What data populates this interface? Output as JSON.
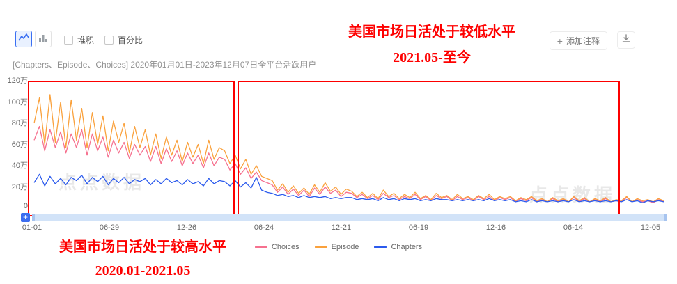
{
  "toolbar": {
    "stacked_label": "堆积",
    "percent_label": "百分比",
    "add_note_label": "添加注释",
    "chart_type_selected": "line"
  },
  "header": {
    "subtitle": "[Chapters、Episode、Choices]  2020年01月01日-2023年12月07日全平台活跃用户"
  },
  "annotations": {
    "top_line1": "美国市场日活处于较低水平",
    "top_line2": "2021.05-至今",
    "bottom_line1": "美国市场日活处于较高水平",
    "bottom_line2": "2020.01-2021.05"
  },
  "watermark": "点点数据",
  "chart_data": {
    "type": "line",
    "title": "[Chapters、Episode、Choices] 2020年01月01日-2023年12月07日全平台活跃用户",
    "y_unit": "万",
    "y_max": 120,
    "ylim": [
      0,
      120
    ],
    "y_tick_labels": [
      "120万",
      "100万",
      "80万",
      "60万",
      "40万",
      "20万",
      "0"
    ],
    "x_tick_labels": [
      "01-01",
      "06-29",
      "12-26",
      "06-24",
      "12-21",
      "06-19",
      "12-16",
      "06-14",
      "12-05"
    ],
    "legend_position": "bottom",
    "grid": false,
    "series": [
      {
        "name": "Choices",
        "color": "#f6718f",
        "values": [
          62,
          75,
          52,
          72,
          55,
          70,
          50,
          68,
          55,
          72,
          48,
          68,
          52,
          65,
          46,
          62,
          50,
          60,
          45,
          58,
          48,
          56,
          42,
          56,
          40,
          54,
          42,
          52,
          38,
          50,
          40,
          48,
          36,
          50,
          38,
          46,
          44,
          34,
          40,
          30,
          36,
          26,
          32,
          24,
          22,
          20,
          13,
          18,
          11,
          16,
          10,
          15,
          9,
          17,
          11,
          18,
          12,
          15,
          9,
          13,
          12,
          8,
          11,
          7,
          10,
          6,
          12,
          8,
          10,
          6,
          9,
          7,
          11,
          6,
          9,
          5,
          10,
          7,
          9,
          5,
          9,
          6,
          8,
          5,
          9,
          6,
          9,
          5,
          8,
          6,
          8,
          4,
          7,
          5,
          8,
          4,
          6,
          4,
          7,
          4,
          6,
          4,
          8,
          4,
          7,
          4,
          6,
          4,
          7,
          4,
          5,
          4,
          8,
          4,
          6,
          4,
          5,
          3,
          6,
          4
        ]
      },
      {
        "name": "Episode",
        "color": "#faa13c",
        "values": [
          78,
          102,
          58,
          105,
          60,
          98,
          55,
          100,
          62,
          92,
          55,
          88,
          58,
          85,
          52,
          80,
          60,
          78,
          50,
          75,
          55,
          72,
          48,
          68,
          45,
          65,
          48,
          62,
          42,
          60,
          46,
          58,
          40,
          62,
          44,
          55,
          52,
          40,
          48,
          35,
          44,
          30,
          38,
          28,
          26,
          24,
          15,
          21,
          13,
          19,
          12,
          17,
          11,
          20,
          13,
          22,
          14,
          18,
          11,
          16,
          14,
          9,
          13,
          8,
          12,
          7,
          15,
          9,
          12,
          7,
          11,
          8,
          13,
          7,
          10,
          6,
          12,
          8,
          10,
          6,
          11,
          7,
          9,
          6,
          10,
          7,
          11,
          6,
          9,
          7,
          9,
          5,
          8,
          6,
          9,
          5,
          7,
          4,
          8,
          5,
          7,
          4,
          9,
          5,
          8,
          4,
          7,
          5,
          8,
          4,
          6,
          5,
          9,
          4,
          7,
          5,
          6,
          4,
          7,
          5
        ]
      },
      {
        "name": "Chapters",
        "color": "#2b5aed",
        "values": [
          22,
          30,
          19,
          28,
          21,
          26,
          20,
          27,
          24,
          29,
          21,
          27,
          23,
          28,
          20,
          26,
          22,
          27,
          21,
          25,
          23,
          26,
          20,
          25,
          21,
          26,
          22,
          24,
          20,
          25,
          21,
          23,
          19,
          26,
          21,
          24,
          23,
          19,
          24,
          18,
          22,
          17,
          27,
          15,
          13,
          12,
          10,
          11,
          9,
          10,
          8,
          10,
          8,
          9,
          8,
          9,
          7,
          8,
          7,
          8,
          8,
          6,
          7,
          6,
          7,
          5,
          8,
          6,
          7,
          5,
          7,
          6,
          7,
          5,
          6,
          5,
          7,
          6,
          6,
          5,
          6,
          5,
          6,
          5,
          6,
          5,
          7,
          5,
          6,
          5,
          6,
          4,
          5,
          4,
          6,
          4,
          5,
          4,
          5,
          4,
          5,
          4,
          6,
          4,
          5,
          4,
          5,
          4,
          5,
          4,
          5,
          4,
          6,
          4,
          5,
          3,
          5,
          4,
          5,
          4
        ]
      }
    ]
  }
}
